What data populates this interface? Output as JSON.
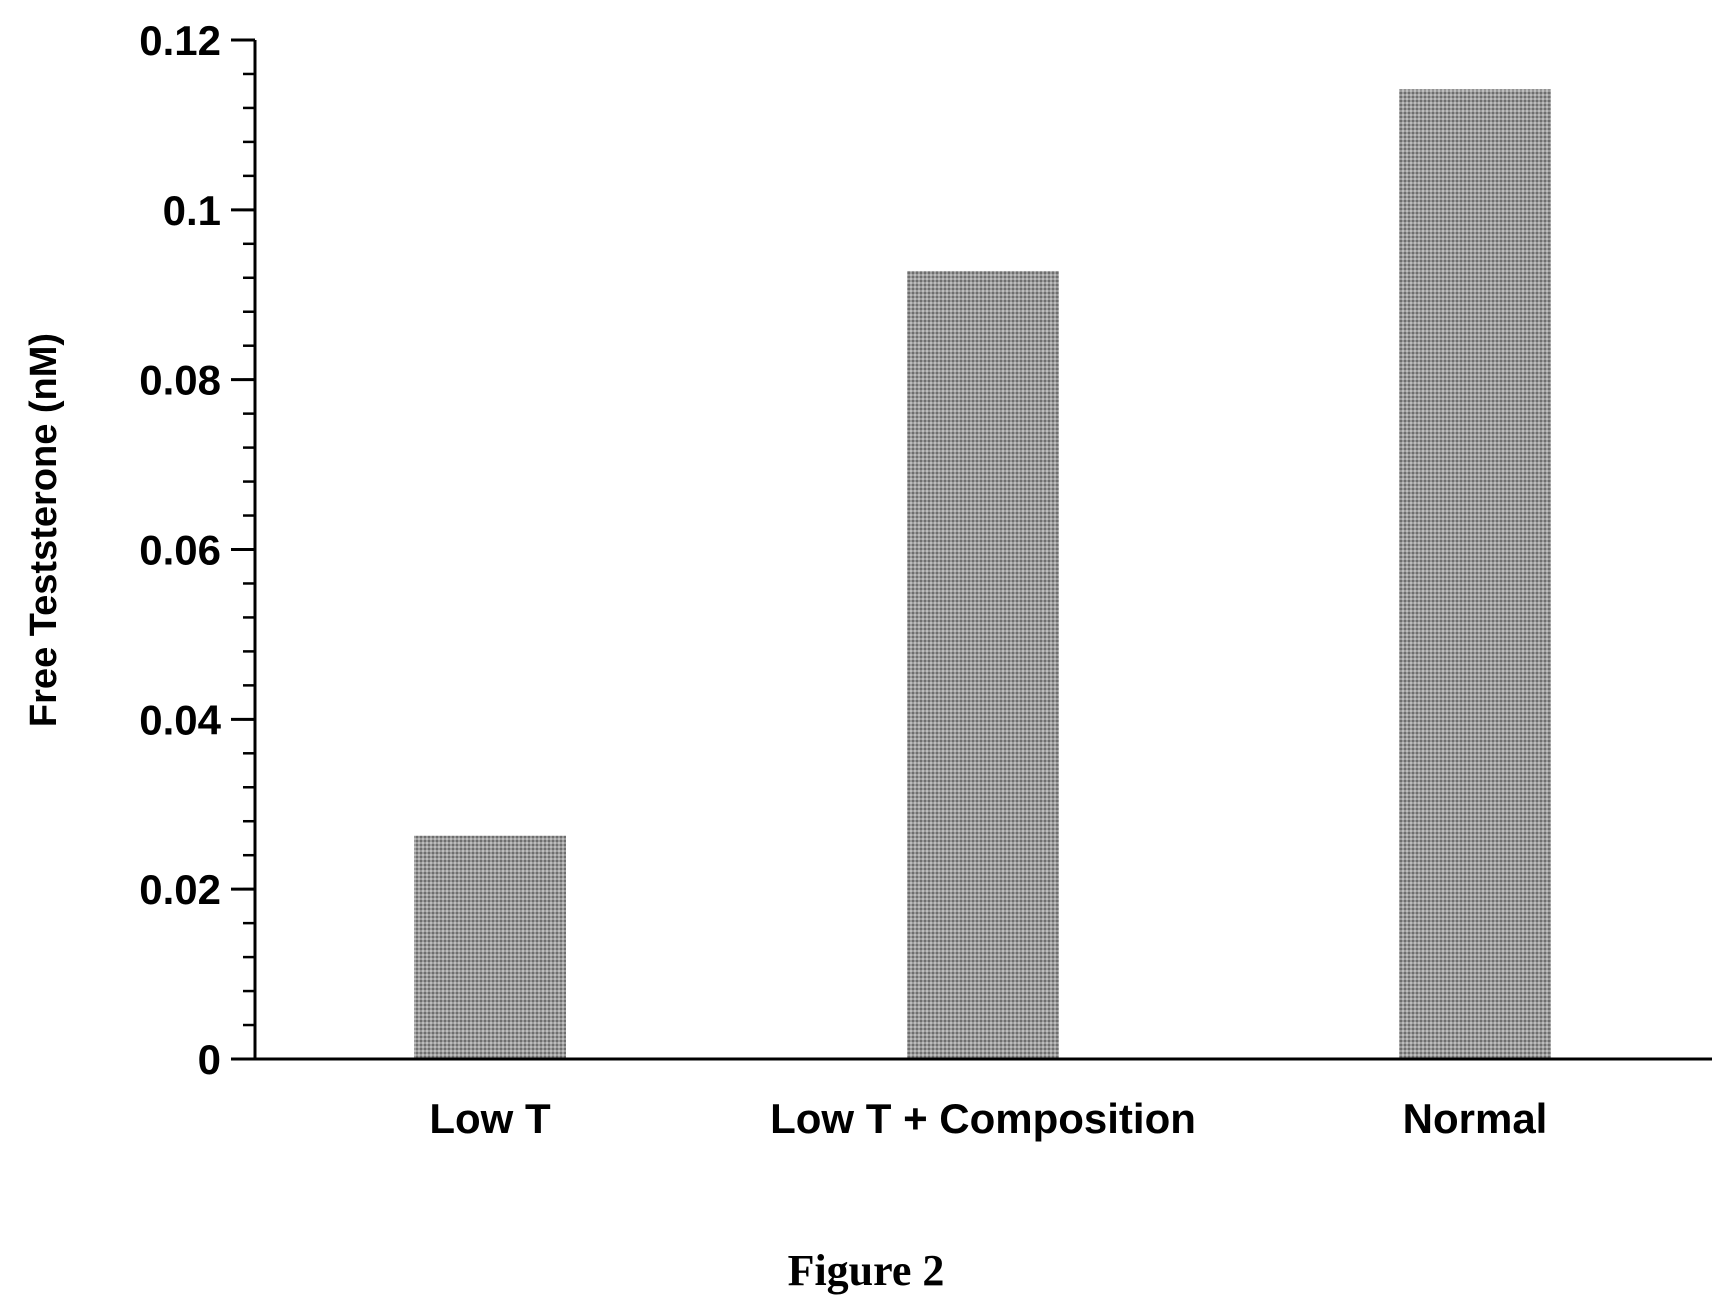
{
  "chart_data": {
    "type": "bar",
    "categories": [
      "Low T",
      "Low T + Composition",
      "Normal"
    ],
    "values": [
      0.0263,
      0.0928,
      0.1142
    ],
    "title": "",
    "xlabel": "",
    "ylabel": "Free Teststerone (nM)",
    "ylim": [
      0,
      0.12
    ],
    "yticks": [
      "0",
      "0.02",
      "0.04",
      "0.06",
      "0.08",
      "0.1",
      "0.12"
    ],
    "minor_tick_step": 0.004,
    "grid": false,
    "legend": "none",
    "bar_color": "#8c8c8c"
  },
  "figure": {
    "caption": "Figure 2"
  }
}
